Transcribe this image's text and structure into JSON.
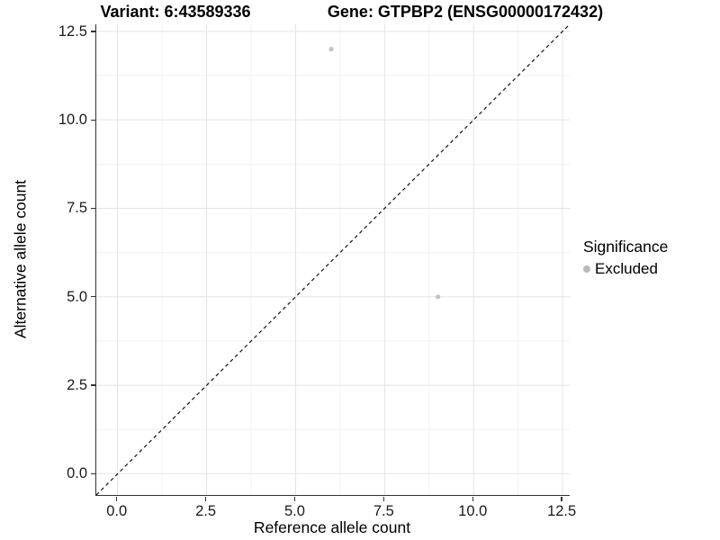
{
  "figure": {
    "title_left": "Variant: 6:43589336",
    "title_right": "Gene: GTPBP2 (ENSG00000172432)"
  },
  "axes": {
    "x_title": "Reference allele count",
    "y_title": "Alternative allele count"
  },
  "legend": {
    "title": "Significance",
    "items": [
      {
        "label": "Excluded",
        "color": "#b9b9b9"
      }
    ]
  },
  "chart_data": {
    "type": "scatter",
    "title": "Variant: 6:43589336   Gene: GTPBP2 (ENSG00000172432)",
    "xlabel": "Reference allele count",
    "ylabel": "Alternative allele count",
    "xlim": [
      -0.6,
      12.7
    ],
    "ylim": [
      -0.6,
      12.7
    ],
    "major_ticks": [
      {
        "v": 0,
        "label": "0.0"
      },
      {
        "v": 2.5,
        "label": "2.5"
      },
      {
        "v": 5,
        "label": "5.0"
      },
      {
        "v": 7.5,
        "label": "7.5"
      },
      {
        "v": 10,
        "label": "10.0"
      },
      {
        "v": 12.5,
        "label": "12.5"
      }
    ],
    "minor_gridlines": [
      1.25,
      3.75,
      6.25,
      8.75,
      11.25
    ],
    "grid": "major+minor",
    "legend_position": "right",
    "series": [
      {
        "name": "Excluded",
        "color": "#c3c3c3",
        "points": [
          {
            "x": 6,
            "y": 12
          },
          {
            "x": 9,
            "y": 5
          }
        ]
      }
    ],
    "reference_line": {
      "kind": "abline",
      "slope": 1,
      "intercept": 0,
      "style": "dashed",
      "color": "#111111"
    },
    "colors": {
      "grid_major": "#e4e4e4",
      "grid_minor": "#f1f1f1",
      "axis_line": "#333333",
      "point": "#c3c3c3"
    }
  }
}
